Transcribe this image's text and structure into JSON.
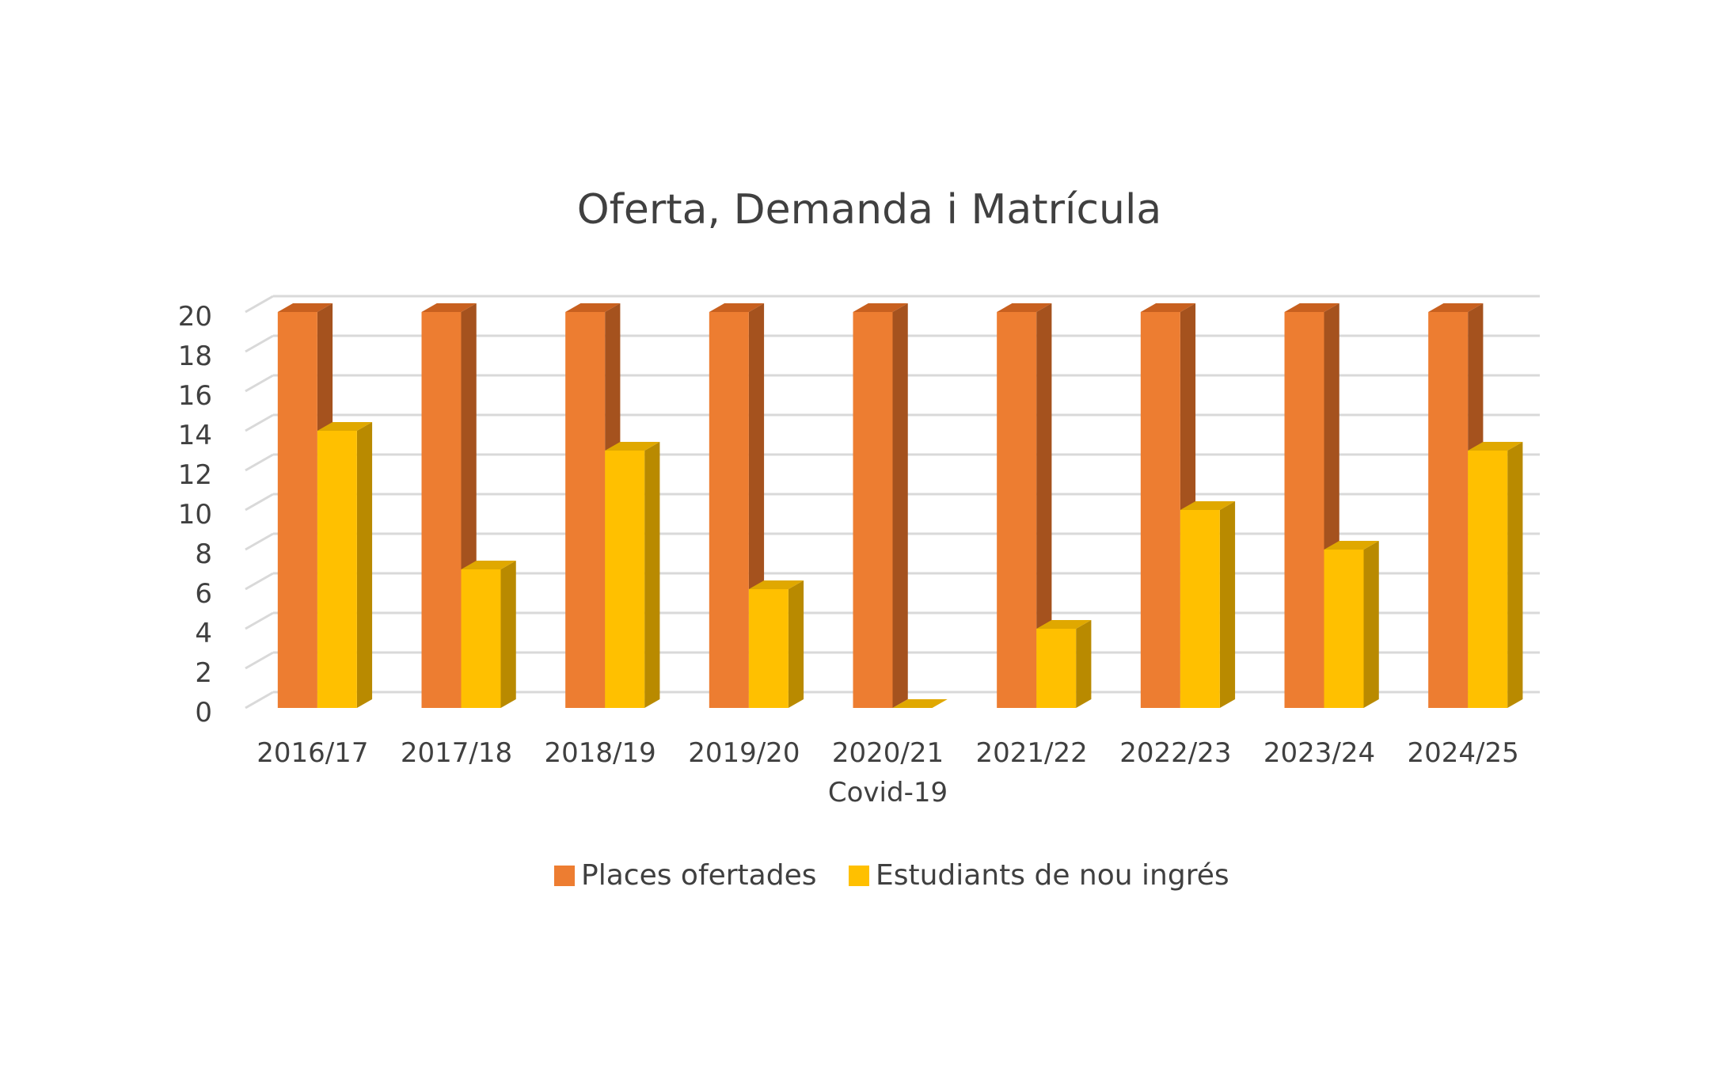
{
  "chart_data": {
    "type": "bar",
    "title": "Oferta, Demanda i Matrícula",
    "categories": [
      [
        "2016/17"
      ],
      [
        "2017/18"
      ],
      [
        "2018/19"
      ],
      [
        "2019/20"
      ],
      [
        "2020/21",
        "Covid-19"
      ],
      [
        "2021/22"
      ],
      [
        "2022/23"
      ],
      [
        "2023/24"
      ],
      [
        "2024/25"
      ]
    ],
    "series": [
      {
        "name": "Places ofertades",
        "values": [
          20,
          20,
          20,
          20,
          20,
          20,
          20,
          20,
          20
        ]
      },
      {
        "name": "Estudiants de nou ingrés",
        "values": [
          14,
          7,
          13,
          6,
          0,
          4,
          10,
          8,
          13
        ]
      }
    ],
    "xlabel": "",
    "ylabel": "",
    "ylim": [
      0,
      20
    ],
    "yticks": [
      0,
      2,
      4,
      6,
      8,
      10,
      12,
      14,
      16,
      18,
      20
    ],
    "grid": true,
    "legend_position": "bottom",
    "style": "3d-clustered-column",
    "colors": {
      "series": [
        "#ED7D31",
        "#FFC000"
      ],
      "series_side": [
        "#A5521E",
        "#B98A00"
      ],
      "series_top": [
        "#C8601F",
        "#E0A800"
      ],
      "grid": "#D9D9D9",
      "text": "#404040",
      "title": "#404040"
    }
  }
}
